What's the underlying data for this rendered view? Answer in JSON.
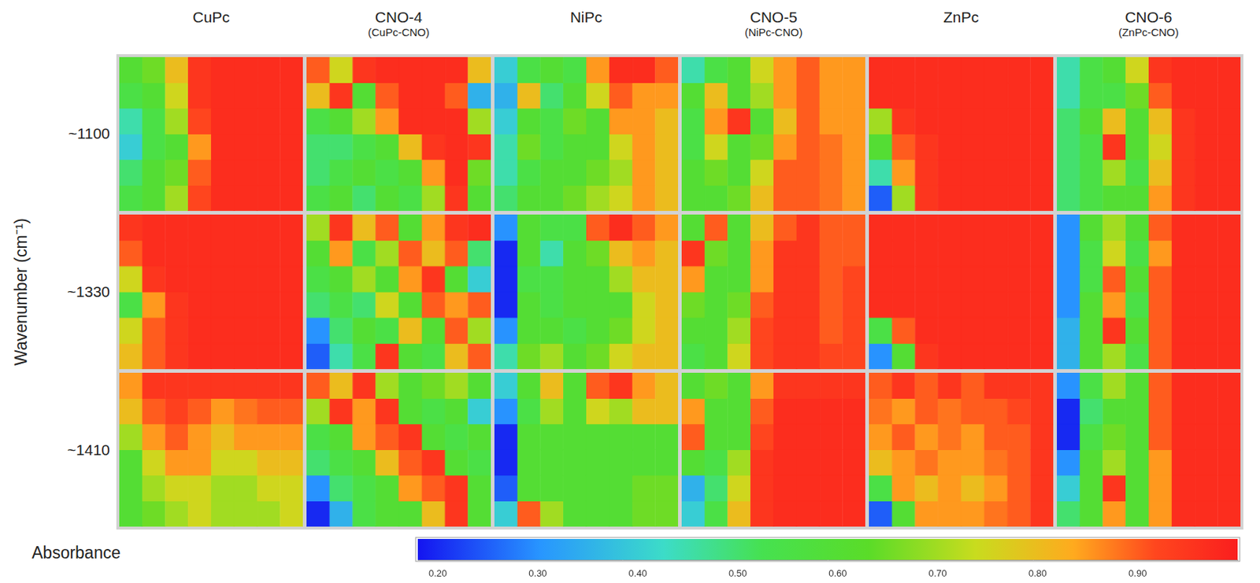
{
  "chart_data": {
    "type": "heatmap",
    "y_label": "Wavenumber (cm⁻¹)",
    "tick_labels": false,
    "columns": [
      {
        "title": "CuPc"
      },
      {
        "title": "CNO-4",
        "subtitle": "(CuPc-CNO)"
      },
      {
        "title": "NiPc"
      },
      {
        "title": "CNO-5",
        "subtitle": "(NiPc-CNO)"
      },
      {
        "title": "ZnPc"
      },
      {
        "title": "CNO-6",
        "subtitle": "(ZnPc-CNO)"
      }
    ],
    "rows": [
      "~1100",
      "~1330",
      "~1410"
    ],
    "colorbar": {
      "label": "Absorbance",
      "range": [
        0.18,
        1.0
      ],
      "ticks": [
        {
          "value": 0.2,
          "label": "0.20"
        },
        {
          "value": 0.3,
          "label": "0.30"
        },
        {
          "value": 0.4,
          "label": "0.40"
        },
        {
          "value": 0.5,
          "label": "0.50"
        },
        {
          "value": 0.6,
          "label": "0.60"
        },
        {
          "value": 0.7,
          "label": "0.70"
        },
        {
          "value": 0.8,
          "label": "0.80"
        },
        {
          "value": 0.9,
          "label": "0.90"
        }
      ]
    },
    "cells": [
      [
        [
          [
            0.6,
            0.65,
            0.8,
            0.95,
            0.97,
            0.97,
            0.97,
            0.97
          ],
          [
            0.55,
            0.6,
            0.75,
            0.95,
            0.97,
            0.97,
            0.97,
            0.97
          ],
          [
            0.45,
            0.55,
            0.7,
            0.92,
            0.97,
            0.97,
            0.97,
            0.97
          ],
          [
            0.4,
            0.55,
            0.6,
            0.85,
            0.97,
            0.97,
            0.97,
            0.97
          ],
          [
            0.5,
            0.6,
            0.65,
            0.9,
            0.97,
            0.97,
            0.97,
            0.97
          ],
          [
            0.55,
            0.6,
            0.7,
            0.92,
            0.97,
            0.97,
            0.97,
            0.97
          ]
        ],
        [
          [
            0.9,
            0.75,
            0.95,
            0.97,
            0.97,
            0.97,
            0.97,
            0.8
          ],
          [
            0.8,
            0.95,
            0.6,
            0.9,
            0.97,
            0.97,
            0.9,
            0.35
          ],
          [
            0.55,
            0.6,
            0.7,
            0.85,
            0.97,
            0.97,
            0.97,
            0.7
          ],
          [
            0.5,
            0.5,
            0.55,
            0.6,
            0.8,
            0.95,
            0.97,
            0.95
          ],
          [
            0.5,
            0.55,
            0.6,
            0.55,
            0.6,
            0.85,
            0.97,
            0.65
          ],
          [
            0.55,
            0.6,
            0.5,
            0.6,
            0.55,
            0.7,
            0.95,
            0.6
          ]
        ],
        [
          [
            0.4,
            0.55,
            0.6,
            0.55,
            0.85,
            0.97,
            0.97,
            0.9
          ],
          [
            0.35,
            0.8,
            0.5,
            0.6,
            0.75,
            0.9,
            0.85,
            0.85
          ],
          [
            0.4,
            0.6,
            0.55,
            0.65,
            0.6,
            0.85,
            0.85,
            0.8
          ],
          [
            0.45,
            0.65,
            0.55,
            0.6,
            0.6,
            0.75,
            0.85,
            0.8
          ],
          [
            0.45,
            0.55,
            0.6,
            0.6,
            0.65,
            0.7,
            0.85,
            0.8
          ],
          [
            0.5,
            0.6,
            0.6,
            0.65,
            0.7,
            0.75,
            0.85,
            0.8
          ]
        ],
        [
          [
            0.45,
            0.55,
            0.6,
            0.75,
            0.85,
            0.9,
            0.85,
            0.85
          ],
          [
            0.6,
            0.8,
            0.6,
            0.7,
            0.85,
            0.9,
            0.85,
            0.85
          ],
          [
            0.55,
            0.85,
            0.95,
            0.6,
            0.8,
            0.9,
            0.85,
            0.85
          ],
          [
            0.55,
            0.75,
            0.6,
            0.65,
            0.85,
            0.9,
            0.88,
            0.85
          ],
          [
            0.6,
            0.65,
            0.6,
            0.75,
            0.9,
            0.9,
            0.88,
            0.85
          ],
          [
            0.6,
            0.6,
            0.65,
            0.8,
            0.9,
            0.9,
            0.88,
            0.85
          ]
        ],
        [
          [
            0.97,
            0.97,
            0.97,
            0.97,
            0.97,
            0.97,
            0.97,
            0.97
          ],
          [
            0.97,
            0.97,
            0.97,
            0.97,
            0.97,
            0.97,
            0.97,
            0.97
          ],
          [
            0.7,
            0.95,
            0.97,
            0.97,
            0.97,
            0.97,
            0.97,
            0.97
          ],
          [
            0.6,
            0.9,
            0.95,
            0.97,
            0.97,
            0.97,
            0.97,
            0.97
          ],
          [
            0.45,
            0.85,
            0.95,
            0.97,
            0.97,
            0.97,
            0.97,
            0.97
          ],
          [
            0.25,
            0.7,
            0.95,
            0.97,
            0.97,
            0.97,
            0.97,
            0.97
          ]
        ],
        [
          [
            0.45,
            0.55,
            0.6,
            0.75,
            0.95,
            0.97,
            0.97,
            0.97
          ],
          [
            0.45,
            0.55,
            0.55,
            0.65,
            0.9,
            0.97,
            0.97,
            0.97
          ],
          [
            0.5,
            0.6,
            0.8,
            0.6,
            0.8,
            0.95,
            0.97,
            0.97
          ],
          [
            0.5,
            0.55,
            0.95,
            0.6,
            0.75,
            0.95,
            0.97,
            0.97
          ],
          [
            0.5,
            0.55,
            0.7,
            0.55,
            0.8,
            0.95,
            0.97,
            0.97
          ],
          [
            0.5,
            0.55,
            0.6,
            0.6,
            0.85,
            0.95,
            0.97,
            0.97
          ]
        ]
      ],
      [
        [
          [
            0.95,
            0.97,
            0.97,
            0.97,
            0.97,
            0.97,
            0.97,
            0.97
          ],
          [
            0.9,
            0.97,
            0.97,
            0.97,
            0.97,
            0.97,
            0.97,
            0.97
          ],
          [
            0.75,
            0.95,
            0.97,
            0.97,
            0.97,
            0.97,
            0.97,
            0.97
          ],
          [
            0.55,
            0.85,
            0.95,
            0.97,
            0.97,
            0.97,
            0.97,
            0.97
          ],
          [
            0.75,
            0.9,
            0.95,
            0.97,
            0.97,
            0.97,
            0.97,
            0.97
          ],
          [
            0.8,
            0.9,
            0.95,
            0.97,
            0.97,
            0.97,
            0.97,
            0.97
          ]
        ],
        [
          [
            0.7,
            0.95,
            0.8,
            0.9,
            0.6,
            0.85,
            0.95,
            0.97
          ],
          [
            0.6,
            0.85,
            0.55,
            0.7,
            0.9,
            0.8,
            0.9,
            0.5
          ],
          [
            0.55,
            0.6,
            0.7,
            0.6,
            0.85,
            0.95,
            0.6,
            0.4
          ],
          [
            0.5,
            0.55,
            0.5,
            0.75,
            0.6,
            0.9,
            0.85,
            0.9
          ],
          [
            0.3,
            0.5,
            0.6,
            0.55,
            0.8,
            0.6,
            0.9,
            0.7
          ],
          [
            0.25,
            0.45,
            0.55,
            0.95,
            0.6,
            0.55,
            0.8,
            0.9
          ]
        ],
        [
          [
            0.3,
            0.6,
            0.55,
            0.55,
            0.9,
            0.97,
            0.9,
            0.85
          ],
          [
            0.2,
            0.6,
            0.45,
            0.6,
            0.65,
            0.8,
            0.85,
            0.8
          ],
          [
            0.2,
            0.55,
            0.55,
            0.6,
            0.6,
            0.7,
            0.8,
            0.8
          ],
          [
            0.2,
            0.6,
            0.55,
            0.6,
            0.6,
            0.6,
            0.75,
            0.8
          ],
          [
            0.3,
            0.6,
            0.6,
            0.55,
            0.6,
            0.65,
            0.75,
            0.8
          ],
          [
            0.45,
            0.65,
            0.7,
            0.6,
            0.65,
            0.75,
            0.8,
            0.8
          ]
        ],
        [
          [
            0.6,
            0.9,
            0.6,
            0.8,
            0.9,
            0.95,
            0.9,
            0.9
          ],
          [
            0.95,
            0.65,
            0.6,
            0.85,
            0.95,
            0.95,
            0.9,
            0.9
          ],
          [
            0.85,
            0.6,
            0.6,
            0.85,
            0.95,
            0.95,
            0.9,
            0.92
          ],
          [
            0.65,
            0.6,
            0.65,
            0.9,
            0.95,
            0.95,
            0.9,
            0.92
          ],
          [
            0.6,
            0.6,
            0.7,
            0.92,
            0.95,
            0.95,
            0.9,
            0.92
          ],
          [
            0.55,
            0.6,
            0.75,
            0.92,
            0.95,
            0.95,
            0.92,
            0.92
          ]
        ],
        [
          [
            0.97,
            0.97,
            0.97,
            0.97,
            0.97,
            0.97,
            0.97,
            0.97
          ],
          [
            0.97,
            0.97,
            0.97,
            0.97,
            0.97,
            0.97,
            0.97,
            0.97
          ],
          [
            0.97,
            0.97,
            0.97,
            0.97,
            0.97,
            0.97,
            0.97,
            0.97
          ],
          [
            0.97,
            0.97,
            0.97,
            0.97,
            0.97,
            0.97,
            0.97,
            0.97
          ],
          [
            0.55,
            0.9,
            0.97,
            0.97,
            0.97,
            0.97,
            0.97,
            0.97
          ],
          [
            0.3,
            0.6,
            0.95,
            0.97,
            0.97,
            0.97,
            0.97,
            0.97
          ]
        ],
        [
          [
            0.3,
            0.6,
            0.7,
            0.6,
            0.9,
            0.97,
            0.97,
            0.97
          ],
          [
            0.3,
            0.55,
            0.75,
            0.55,
            0.85,
            0.97,
            0.97,
            0.97
          ],
          [
            0.3,
            0.55,
            0.9,
            0.6,
            0.9,
            0.97,
            0.97,
            0.97
          ],
          [
            0.3,
            0.6,
            0.85,
            0.55,
            0.9,
            0.97,
            0.97,
            0.97
          ],
          [
            0.35,
            0.6,
            0.95,
            0.6,
            0.9,
            0.97,
            0.97,
            0.97
          ],
          [
            0.35,
            0.6,
            0.7,
            0.55,
            0.9,
            0.97,
            0.97,
            0.97
          ]
        ]
      ],
      [
        [
          [
            0.85,
            0.95,
            0.95,
            0.95,
            0.95,
            0.95,
            0.95,
            0.95
          ],
          [
            0.8,
            0.9,
            0.93,
            0.9,
            0.85,
            0.88,
            0.9,
            0.9
          ],
          [
            0.7,
            0.85,
            0.9,
            0.85,
            0.8,
            0.85,
            0.85,
            0.85
          ],
          [
            0.6,
            0.75,
            0.85,
            0.85,
            0.75,
            0.75,
            0.8,
            0.8
          ],
          [
            0.6,
            0.7,
            0.75,
            0.75,
            0.7,
            0.7,
            0.75,
            0.75
          ],
          [
            0.6,
            0.65,
            0.7,
            0.75,
            0.7,
            0.7,
            0.7,
            0.75
          ]
        ],
        [
          [
            0.9,
            0.8,
            0.95,
            0.7,
            0.6,
            0.65,
            0.7,
            0.6
          ],
          [
            0.7,
            0.95,
            0.85,
            0.95,
            0.6,
            0.55,
            0.6,
            0.4
          ],
          [
            0.55,
            0.6,
            0.85,
            0.9,
            0.95,
            0.6,
            0.55,
            0.6
          ],
          [
            0.5,
            0.55,
            0.6,
            0.8,
            0.9,
            0.95,
            0.6,
            0.55
          ],
          [
            0.3,
            0.5,
            0.55,
            0.6,
            0.85,
            0.9,
            0.95,
            0.6
          ],
          [
            0.2,
            0.35,
            0.55,
            0.6,
            0.6,
            0.8,
            0.95,
            0.6
          ]
        ],
        [
          [
            0.4,
            0.6,
            0.8,
            0.6,
            0.9,
            0.95,
            0.85,
            0.8
          ],
          [
            0.3,
            0.55,
            0.7,
            0.6,
            0.75,
            0.7,
            0.8,
            0.8
          ],
          [
            0.2,
            0.6,
            0.6,
            0.6,
            0.6,
            0.6,
            0.6,
            0.6
          ],
          [
            0.2,
            0.6,
            0.6,
            0.6,
            0.6,
            0.6,
            0.6,
            0.6
          ],
          [
            0.25,
            0.6,
            0.6,
            0.6,
            0.6,
            0.6,
            0.65,
            0.65
          ],
          [
            0.4,
            0.9,
            0.7,
            0.6,
            0.6,
            0.6,
            0.65,
            0.65
          ]
        ],
        [
          [
            0.6,
            0.65,
            0.6,
            0.85,
            0.95,
            0.95,
            0.95,
            0.95
          ],
          [
            0.85,
            0.6,
            0.6,
            0.9,
            0.97,
            0.97,
            0.97,
            0.97
          ],
          [
            0.9,
            0.6,
            0.6,
            0.92,
            0.97,
            0.97,
            0.97,
            0.97
          ],
          [
            0.6,
            0.55,
            0.7,
            0.95,
            0.97,
            0.97,
            0.97,
            0.97
          ],
          [
            0.35,
            0.5,
            0.75,
            0.95,
            0.97,
            0.97,
            0.97,
            0.97
          ],
          [
            0.4,
            0.55,
            0.8,
            0.95,
            0.97,
            0.97,
            0.97,
            0.97
          ]
        ],
        [
          [
            0.9,
            0.95,
            0.9,
            0.95,
            0.9,
            0.95,
            0.95,
            0.95
          ],
          [
            0.88,
            0.85,
            0.9,
            0.88,
            0.9,
            0.9,
            0.92,
            0.95
          ],
          [
            0.85,
            0.9,
            0.85,
            0.88,
            0.85,
            0.9,
            0.9,
            0.95
          ],
          [
            0.8,
            0.85,
            0.88,
            0.85,
            0.85,
            0.88,
            0.9,
            0.95
          ],
          [
            0.55,
            0.85,
            0.8,
            0.85,
            0.8,
            0.85,
            0.9,
            0.95
          ],
          [
            0.25,
            0.6,
            0.85,
            0.85,
            0.85,
            0.88,
            0.9,
            0.95
          ]
        ],
        [
          [
            0.3,
            0.55,
            0.7,
            0.6,
            0.9,
            0.97,
            0.97,
            0.97
          ],
          [
            0.2,
            0.5,
            0.6,
            0.6,
            0.9,
            0.97,
            0.97,
            0.97
          ],
          [
            0.2,
            0.55,
            0.65,
            0.6,
            0.9,
            0.97,
            0.97,
            0.97
          ],
          [
            0.3,
            0.6,
            0.7,
            0.6,
            0.85,
            0.97,
            0.97,
            0.97
          ],
          [
            0.4,
            0.6,
            0.95,
            0.6,
            0.85,
            0.97,
            0.97,
            0.97
          ],
          [
            0.5,
            0.6,
            0.85,
            0.6,
            0.85,
            0.97,
            0.97,
            0.97
          ]
        ]
      ]
    ]
  }
}
